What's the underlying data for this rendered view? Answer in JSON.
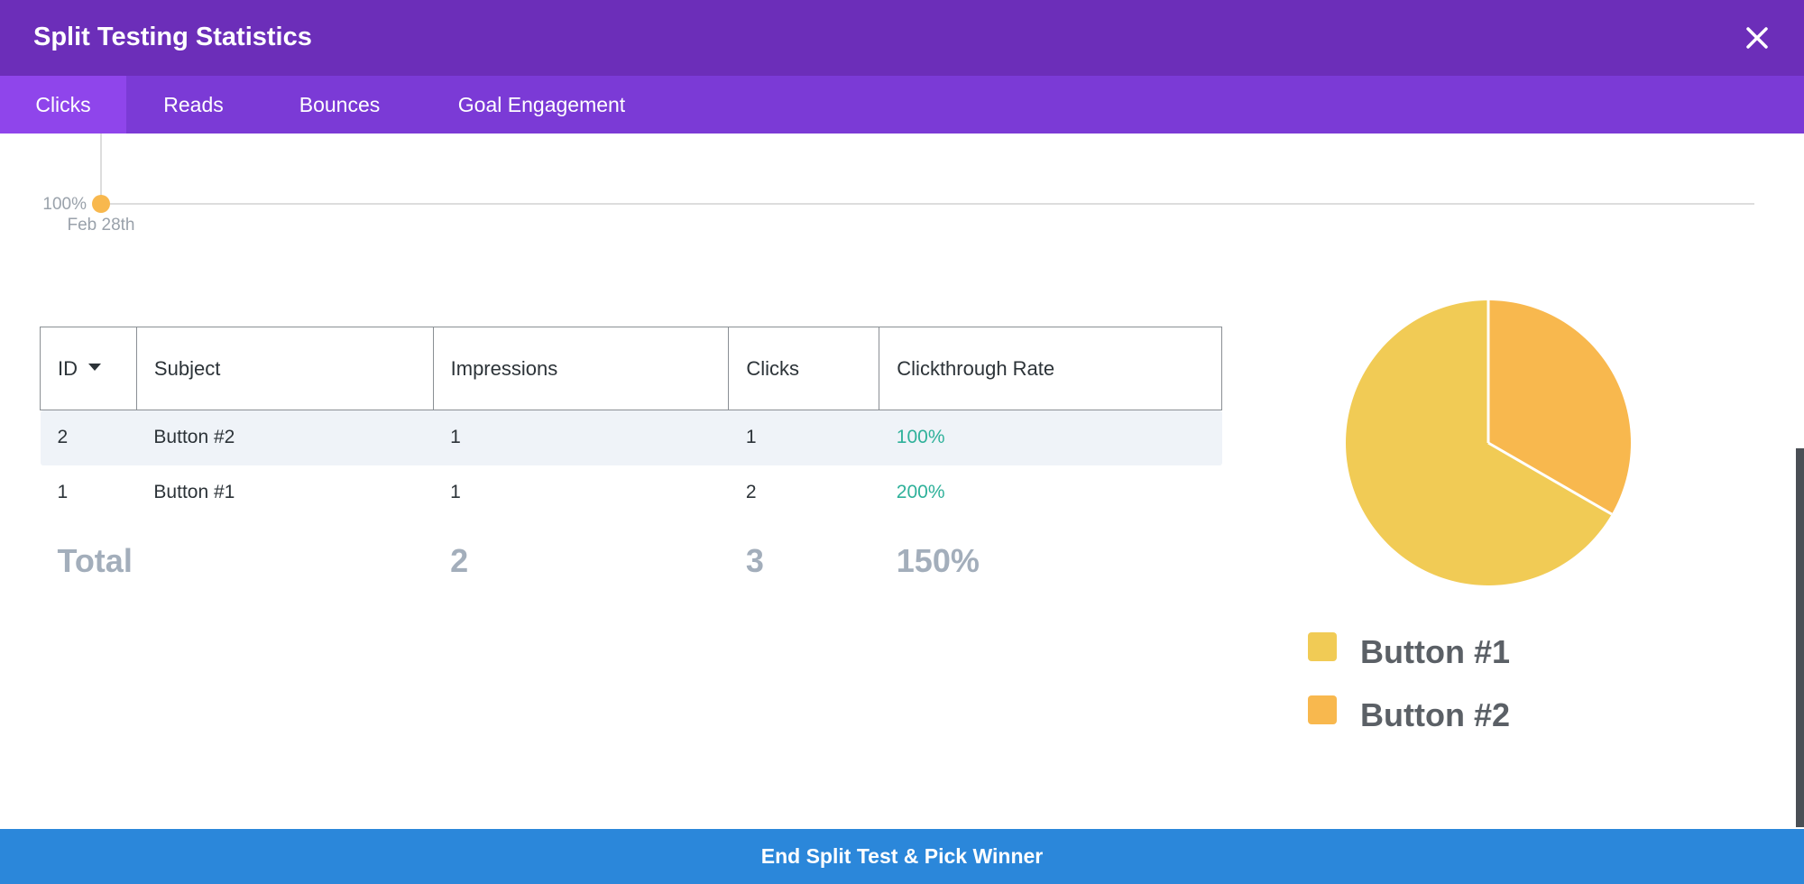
{
  "header": {
    "title": "Split Testing Statistics",
    "close_icon": "close-icon"
  },
  "tabs": [
    {
      "label": "Clicks",
      "active": true
    },
    {
      "label": "Reads",
      "active": false
    },
    {
      "label": "Bounces",
      "active": false
    },
    {
      "label": "Goal Engagement",
      "active": false
    }
  ],
  "line_chart": {
    "y_label": "100%",
    "x_label": "Feb 28th",
    "point_color": "#f8b84e"
  },
  "table": {
    "columns": [
      "ID",
      "Subject",
      "Impressions",
      "Clicks",
      "Clickthrough Rate"
    ],
    "sort_column": "ID",
    "rows": [
      {
        "id": "2",
        "subject": "Button #2",
        "impressions": "1",
        "clicks": "1",
        "rate": "100%"
      },
      {
        "id": "1",
        "subject": "Button #1",
        "impressions": "1",
        "clicks": "2",
        "rate": "200%"
      }
    ],
    "total": {
      "label": "Total",
      "impressions": "2",
      "clicks": "3",
      "rate": "150%"
    }
  },
  "chart_data": {
    "type": "pie",
    "labels": [
      "Button #1",
      "Button #2"
    ],
    "values": [
      2,
      1
    ],
    "colors": [
      "#f1cb55",
      "#f8b84e"
    ]
  },
  "legend": [
    {
      "label": "Button #1",
      "color": "#f1cb55"
    },
    {
      "label": "Button #2",
      "color": "#f8b84e"
    }
  ],
  "footer": {
    "button_label": "End Split Test & Pick Winner"
  }
}
